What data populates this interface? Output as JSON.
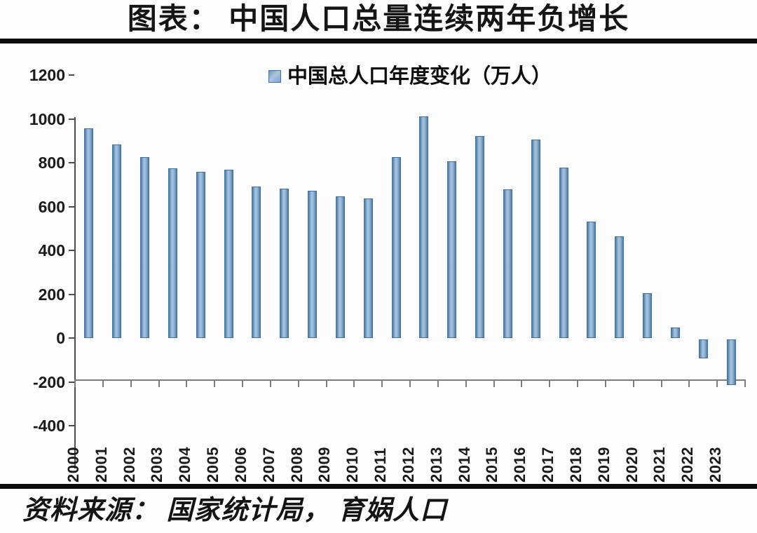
{
  "page": {
    "title": "图表：  中国人口总量连续两年负增长",
    "source": "资料来源：  国家统计局，  育娲人口"
  },
  "chart_data": {
    "type": "bar",
    "title": "图表：中国人口总量连续两年负增长",
    "legend": "中国总人口年度变化（万人）",
    "legend_position": "top-center",
    "xlabel": "",
    "ylabel": "",
    "categories": [
      "2000",
      "2001",
      "2002",
      "2003",
      "2004",
      "2005",
      "2006",
      "2007",
      "2008",
      "2009",
      "2010",
      "2011",
      "2012",
      "2013",
      "2014",
      "2015",
      "2016",
      "2017",
      "2018",
      "2019",
      "2020",
      "2021",
      "2022",
      "2023"
    ],
    "values": [
      957,
      884,
      826,
      774,
      760,
      768,
      692,
      681,
      673,
      648,
      638,
      825,
      1010,
      805,
      921,
      680,
      906,
      779,
      530,
      465,
      204,
      48,
      -85,
      -208
    ],
    "ylim": [
      -400,
      1200
    ],
    "ytick_step": 200,
    "yticks": [
      1200,
      1000,
      800,
      600,
      400,
      200,
      0,
      -200,
      -400
    ],
    "grid": false,
    "colors": {
      "bar_edge": "#4c7aab",
      "bar_center": "#a9c5de",
      "bar_border": "#41719c",
      "axis": "#4d4d4d",
      "zero_line": "#7d7d7d",
      "rule": "#0b0b0b",
      "text": "#1a1a1a"
    }
  }
}
